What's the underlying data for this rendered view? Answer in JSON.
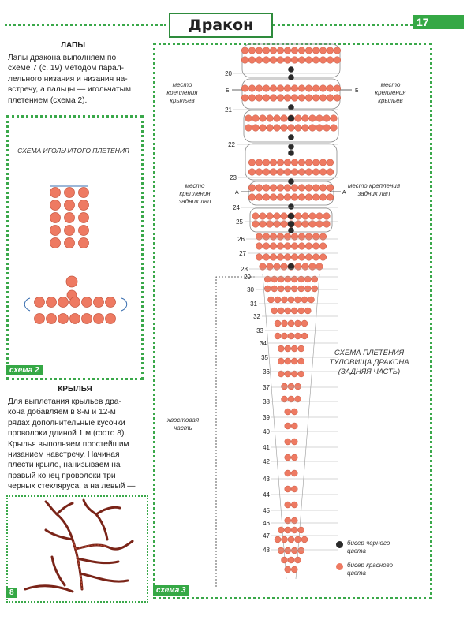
{
  "header": {
    "title": "Дракон",
    "page_number": "17"
  },
  "paws": {
    "heading": "ЛАПЫ",
    "lines": [
      "Лапы дракона выполняем по",
      "схеме 7 (с. 19) методом парал-",
      "лельного низания и низания на-",
      "встречу, а пальцы — игольчатым",
      "плетением (схема 2)."
    ]
  },
  "scheme2": {
    "caption": "СХЕМА ИГОЛЬЧАТОГО ПЛЕТЕНИЯ",
    "label": "схема 2"
  },
  "wings": {
    "heading": "КРЫЛЬЯ",
    "lines": [
      "Для выплетания крыльев дра-",
      "кона добавляем в 8-м и 12-м",
      "рядах дополнительные кусочки",
      "проволоки длиной 1 м (фото 8).",
      "Крылья выполняем простейшим",
      "низанием навстречу. Начиная",
      "плести крыло, нанизываем на",
      "правый конец проволоки три",
      "черных стекляруса, а на левый —"
    ]
  },
  "photo": {
    "label": "8"
  },
  "scheme3": {
    "label": "схема 3",
    "caption_lines": [
      "СХЕМА ПЛЕТЕНИЯ",
      "ТУЛОВИЩА ДРАКОНА",
      "(ЗАДНЯЯ ЧАСТЬ)"
    ],
    "wing_mount_left": [
      "место крепления",
      "крыльев"
    ],
    "wing_mount_right": [
      "место крепления",
      "крыльев"
    ],
    "paw_mount_left": [
      "место крепления",
      "задних лап"
    ],
    "paw_mount_right": [
      "место крепления",
      "задних лап"
    ],
    "tail_note": [
      "хвостовая",
      "часть"
    ],
    "marker_b": "Б",
    "marker_a": "А",
    "rows": [
      "20",
      "21",
      "22",
      "23",
      "24",
      "25",
      "26",
      "27",
      "28",
      "29",
      "30",
      "31",
      "32",
      "33",
      "34",
      "35",
      "36",
      "37",
      "38",
      "39",
      "40",
      "41",
      "42",
      "43",
      "44",
      "45",
      "46",
      "47",
      "48"
    ],
    "legend": [
      {
        "text": [
          "бисер черного",
          "цвета"
        ],
        "color": "#2a2a2a"
      },
      {
        "text": [
          "бисер красного",
          "цвета"
        ],
        "color": "#ee7a62"
      }
    ]
  },
  "colors": {
    "green": "#35a845",
    "bead_red": "#ee7a62",
    "bead_black": "#2a2a2a"
  }
}
